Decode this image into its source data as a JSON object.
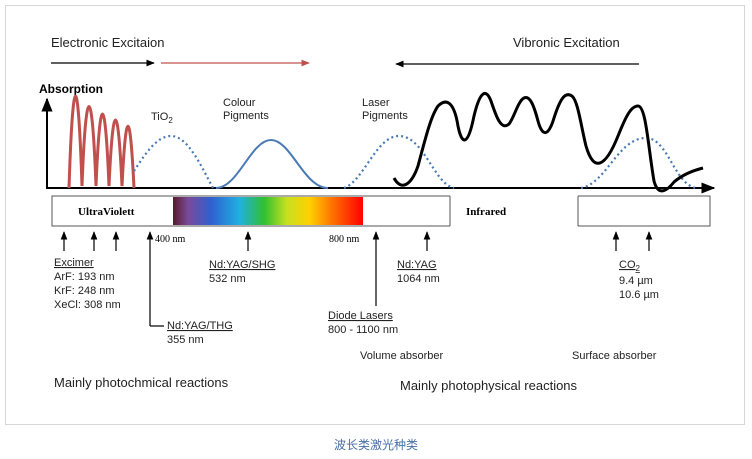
{
  "header": {
    "electronic": "Electronic Excitaion",
    "vibronic": "Vibronic Excitation"
  },
  "axis": {
    "absorption": "Absorption"
  },
  "labels": {
    "tio2": "TiO",
    "tio2_sub": "2",
    "colour_1": "Colour",
    "colour_2": "Pigments",
    "laser_1": "Laser",
    "laser_2": "Pigments"
  },
  "band": {
    "uv": "UltraViolett",
    "ir": "Infrared",
    "nm400": "400 nm",
    "nm800": "800 nm"
  },
  "lasers": {
    "excimer_title": "Excimer",
    "arf": "ArF: 193 nm",
    "krf": "KrF: 248 nm",
    "xecl": "XeCl: 308 nm",
    "thg_title": "Nd:YAG/THG",
    "thg_value": "355 nm",
    "shg_title": "Nd:YAG/SHG",
    "shg_value": "532 nm",
    "diode_title": "Diode Lasers",
    "diode_value": "800 - 1100 nm",
    "yag_title": "Nd:YAG",
    "yag_value": "1064 nm",
    "co2_title": "CO",
    "co2_sub": "2",
    "co2_v1": "9.4 µm",
    "co2_v2": "10.6 µm"
  },
  "absorbers": {
    "volume": "Volume absorber",
    "surface": "Surface absorber"
  },
  "footer": {
    "photochem": "Mainly photochmical reactions",
    "photophys": "Mainly photophysical reactions"
  },
  "caption": "波长类激光种类",
  "colors": {
    "excimer_curve": "#c0504d",
    "colour_curve": "#4a7ab5",
    "dotted": "#4a7ab5",
    "accent_arrow": "#c0504d"
  }
}
